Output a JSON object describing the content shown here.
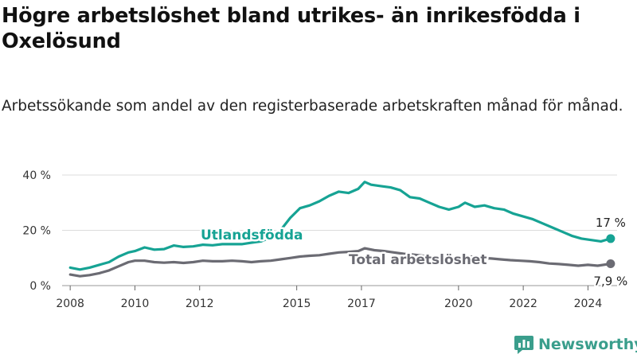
{
  "title": "Högre arbetslöshet bland utrikes- än inrikesfödda i Oxelösund",
  "subtitle": "Arbetssökande som andel av den registerbaserade arbetskraften månad för månad.",
  "brand": {
    "name": "Newsworthy",
    "icon": "newsworthy-logo-icon",
    "color": "#3a9e8c"
  },
  "chart_data": {
    "type": "line",
    "ylim": [
      0,
      40
    ],
    "xlim": [
      2007.75,
      2024.9
    ],
    "y_ticks": [
      0,
      20,
      40
    ],
    "y_tick_labels": [
      "0 %",
      "20 %",
      "40 %"
    ],
    "x_ticks": [
      2008,
      2010,
      2012,
      2015,
      2017,
      2020,
      2022,
      2024
    ],
    "x_tick_labels": [
      "2008",
      "2010",
      "2012",
      "2015",
      "2017",
      "2020",
      "2022",
      "2024"
    ],
    "grid": "horizontal",
    "series": [
      {
        "name": "Utlandsfödda",
        "color": "#16a394",
        "end_label": "17 %",
        "points": [
          [
            2008.0,
            6.5
          ],
          [
            2008.3,
            5.8
          ],
          [
            2008.6,
            6.5
          ],
          [
            2008.9,
            7.5
          ],
          [
            2009.2,
            8.5
          ],
          [
            2009.5,
            10.5
          ],
          [
            2009.8,
            12.0
          ],
          [
            2010.0,
            12.5
          ],
          [
            2010.3,
            13.8
          ],
          [
            2010.6,
            13.0
          ],
          [
            2010.9,
            13.2
          ],
          [
            2011.2,
            14.5
          ],
          [
            2011.5,
            14.0
          ],
          [
            2011.8,
            14.2
          ],
          [
            2012.1,
            14.8
          ],
          [
            2012.4,
            14.6
          ],
          [
            2012.7,
            15.0
          ],
          [
            2013.0,
            15.0
          ],
          [
            2013.3,
            15.0
          ],
          [
            2013.6,
            15.5
          ],
          [
            2013.9,
            16.0
          ],
          [
            2014.2,
            17.5
          ],
          [
            2014.5,
            20.0
          ],
          [
            2014.8,
            24.5
          ],
          [
            2015.1,
            28.0
          ],
          [
            2015.4,
            29.0
          ],
          [
            2015.7,
            30.5
          ],
          [
            2016.0,
            32.5
          ],
          [
            2016.3,
            34.0
          ],
          [
            2016.6,
            33.5
          ],
          [
            2016.9,
            35.0
          ],
          [
            2017.1,
            37.5
          ],
          [
            2017.3,
            36.5
          ],
          [
            2017.6,
            36.0
          ],
          [
            2017.9,
            35.5
          ],
          [
            2018.2,
            34.5
          ],
          [
            2018.5,
            32.0
          ],
          [
            2018.8,
            31.5
          ],
          [
            2019.1,
            30.0
          ],
          [
            2019.4,
            28.5
          ],
          [
            2019.7,
            27.5
          ],
          [
            2020.0,
            28.5
          ],
          [
            2020.2,
            30.0
          ],
          [
            2020.5,
            28.5
          ],
          [
            2020.8,
            29.0
          ],
          [
            2021.1,
            28.0
          ],
          [
            2021.4,
            27.5
          ],
          [
            2021.7,
            26.0
          ],
          [
            2022.0,
            25.0
          ],
          [
            2022.3,
            24.0
          ],
          [
            2022.6,
            22.5
          ],
          [
            2022.9,
            21.0
          ],
          [
            2023.2,
            19.5
          ],
          [
            2023.5,
            18.0
          ],
          [
            2023.8,
            17.0
          ],
          [
            2024.1,
            16.5
          ],
          [
            2024.4,
            16.0
          ],
          [
            2024.7,
            17.0
          ]
        ]
      },
      {
        "name": "Total arbetslöshet",
        "color": "#6b6b73",
        "end_label": "7,9 %",
        "points": [
          [
            2008.0,
            4.0
          ],
          [
            2008.3,
            3.4
          ],
          [
            2008.6,
            3.8
          ],
          [
            2008.9,
            4.5
          ],
          [
            2009.2,
            5.5
          ],
          [
            2009.5,
            7.0
          ],
          [
            2009.8,
            8.5
          ],
          [
            2010.0,
            9.0
          ],
          [
            2010.3,
            9.0
          ],
          [
            2010.6,
            8.5
          ],
          [
            2010.9,
            8.3
          ],
          [
            2011.2,
            8.5
          ],
          [
            2011.5,
            8.2
          ],
          [
            2011.8,
            8.5
          ],
          [
            2012.1,
            9.0
          ],
          [
            2012.4,
            8.8
          ],
          [
            2012.7,
            8.8
          ],
          [
            2013.0,
            9.0
          ],
          [
            2013.3,
            8.8
          ],
          [
            2013.6,
            8.5
          ],
          [
            2013.9,
            8.8
          ],
          [
            2014.2,
            9.0
          ],
          [
            2014.5,
            9.5
          ],
          [
            2014.8,
            10.0
          ],
          [
            2015.1,
            10.5
          ],
          [
            2015.4,
            10.8
          ],
          [
            2015.7,
            11.0
          ],
          [
            2016.0,
            11.5
          ],
          [
            2016.3,
            12.0
          ],
          [
            2016.6,
            12.2
          ],
          [
            2016.9,
            12.5
          ],
          [
            2017.1,
            13.5
          ],
          [
            2017.4,
            12.8
          ],
          [
            2017.7,
            12.5
          ],
          [
            2018.0,
            12.0
          ],
          [
            2018.3,
            11.5
          ],
          [
            2018.6,
            11.2
          ],
          [
            2018.9,
            10.8
          ],
          [
            2019.2,
            10.5
          ],
          [
            2019.5,
            10.2
          ],
          [
            2019.8,
            10.0
          ],
          [
            2020.1,
            10.2
          ],
          [
            2020.4,
            10.5
          ],
          [
            2020.7,
            10.0
          ],
          [
            2021.0,
            9.8
          ],
          [
            2021.3,
            9.5
          ],
          [
            2021.6,
            9.2
          ],
          [
            2021.9,
            9.0
          ],
          [
            2022.2,
            8.8
          ],
          [
            2022.5,
            8.5
          ],
          [
            2022.8,
            8.0
          ],
          [
            2023.1,
            7.8
          ],
          [
            2023.4,
            7.5
          ],
          [
            2023.7,
            7.2
          ],
          [
            2024.0,
            7.5
          ],
          [
            2024.3,
            7.2
          ],
          [
            2024.7,
            7.9
          ]
        ]
      }
    ]
  }
}
